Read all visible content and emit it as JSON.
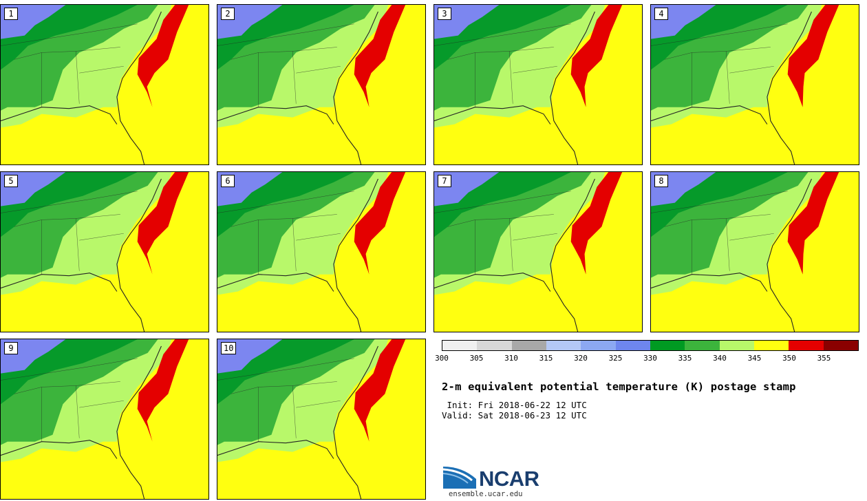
{
  "panels": [
    {
      "label": "1"
    },
    {
      "label": "2"
    },
    {
      "label": "3"
    },
    {
      "label": "4"
    },
    {
      "label": "5"
    },
    {
      "label": "6"
    },
    {
      "label": "7"
    },
    {
      "label": "8"
    },
    {
      "label": "9"
    },
    {
      "label": "10"
    }
  ],
  "colorbar": {
    "ticks": [
      "300",
      "305",
      "310",
      "315",
      "320",
      "325",
      "330",
      "335",
      "340",
      "345",
      "350",
      "355"
    ],
    "colors": [
      "#f0f0f0",
      "#d8d8d8",
      "#a8a8a8",
      "#b4c8f5",
      "#8ca8f2",
      "#6e86ee",
      "#009a22",
      "#3cb43c",
      "#b8f86a",
      "#ffff10",
      "#e40000",
      "#8a0000"
    ]
  },
  "title": "2-m equivalent potential temperature (K) postage stamp",
  "init": " Init: Fri 2018-06-22 12 UTC",
  "valid": "Valid: Sat 2018-06-23 12 UTC",
  "logo": {
    "word": "NCAR",
    "url": "ensemble.ucar.edu"
  },
  "map_colors": {
    "blue": "#7c86f0",
    "dark_green": "#069a2a",
    "green": "#3cb43c",
    "light_green": "#b8f86a",
    "yellow": "#ffff10",
    "red": "#e40000",
    "lines": "#222222"
  }
}
